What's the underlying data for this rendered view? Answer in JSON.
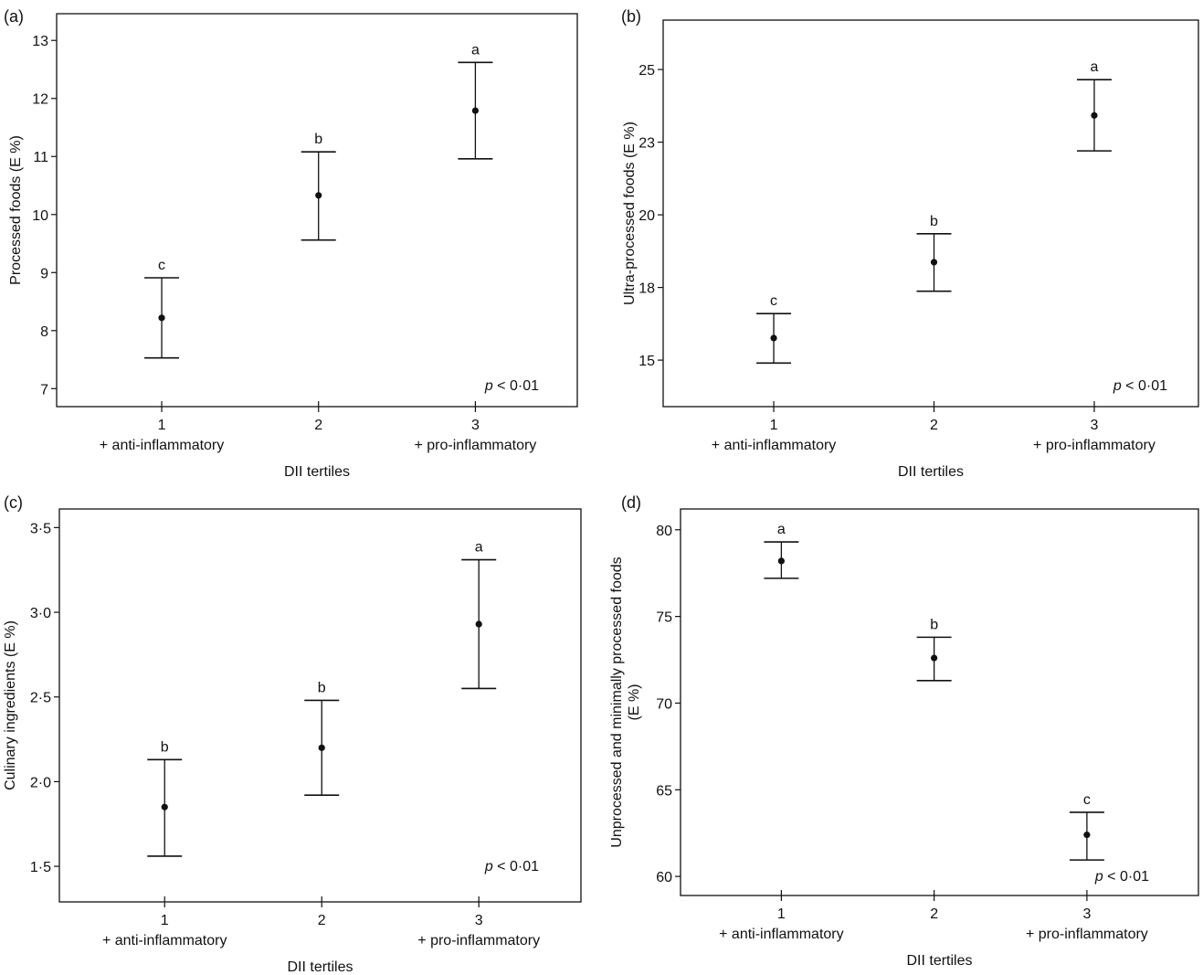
{
  "chart_data": [
    {
      "type": "scatter",
      "panel_label": "(a)",
      "ylabel": [
        "Processed foods (E %)"
      ],
      "xlabel": "DII tertiles",
      "x": [
        1,
        2,
        3
      ],
      "x_tick_labels": [
        "1",
        "2",
        "3"
      ],
      "x_tick_sublabels": [
        "+ anti-inflammatory",
        "",
        "+ pro-inflammatory"
      ],
      "xlim": [
        0.33,
        3.65
      ],
      "ylim": [
        6.69,
        13.46
      ],
      "y_ticks": [
        7,
        8,
        9,
        10,
        11,
        12,
        13
      ],
      "y_tick_labels": [
        "7",
        "8",
        "9",
        "10",
        "11",
        "12",
        "13"
      ],
      "means": [
        8.22,
        10.33,
        11.79
      ],
      "upper": [
        8.91,
        11.08,
        12.62
      ],
      "lower": [
        7.53,
        9.56,
        10.96
      ],
      "group_letters": [
        "c",
        "b",
        "a"
      ],
      "p_value": {
        "p": "p",
        "rest": " < 0·01"
      },
      "grid": false
    },
    {
      "type": "scatter",
      "panel_label": "(b)",
      "ylabel": [
        "Ultra-processed foods (E %)"
      ],
      "xlabel": "DII tertiles",
      "x": [
        1,
        2,
        3
      ],
      "x_tick_labels": [
        "1",
        "2",
        "3"
      ],
      "x_tick_sublabels": [
        "+ anti-inflammatory",
        "",
        "+ pro-inflammatory"
      ],
      "xlim": [
        0.31,
        3.65
      ],
      "ylim": [
        13.4,
        26.7
      ],
      "y_ticks": [
        15,
        17.5,
        20,
        22.5,
        25
      ],
      "y_tick_labels": [
        "15",
        "18",
        "20",
        "23",
        "25"
      ],
      "means": [
        15.76,
        18.37,
        23.42
      ],
      "upper": [
        16.6,
        19.35,
        24.65
      ],
      "lower": [
        14.9,
        17.37,
        22.2
      ],
      "group_letters": [
        "c",
        "b",
        "a"
      ],
      "p_value": {
        "p": "p",
        "rest": " < 0·01"
      },
      "grid": false
    },
    {
      "type": "scatter",
      "panel_label": "(c)",
      "ylabel": [
        "Culinary ingredients (E %)"
      ],
      "xlabel": "DII tertiles",
      "x": [
        1,
        2,
        3
      ],
      "x_tick_labels": [
        "1",
        "2",
        "3"
      ],
      "x_tick_sublabels": [
        "+ anti-inflammatory",
        "",
        "+ pro-inflammatory"
      ],
      "xlim": [
        0.33,
        3.65
      ],
      "ylim": [
        1.29,
        3.61
      ],
      "y_ticks": [
        1.5,
        2.0,
        2.5,
        3.0,
        3.5
      ],
      "y_tick_labels": [
        "1·5",
        "2·0",
        "2·5",
        "3·0",
        "3·5"
      ],
      "means": [
        1.85,
        2.2,
        2.93
      ],
      "upper": [
        2.13,
        2.48,
        3.31
      ],
      "lower": [
        1.56,
        1.92,
        2.55
      ],
      "group_letters": [
        "b",
        "b",
        "a"
      ],
      "p_value": {
        "p": "p",
        "rest": " < 0·01"
      },
      "grid": false
    },
    {
      "type": "scatter",
      "panel_label": "(d)",
      "ylabel": [
        "Unprocessed and minimally processed foods",
        "(E %)"
      ],
      "xlabel": "DII tertiles",
      "x": [
        1,
        2,
        3
      ],
      "x_tick_labels": [
        "1",
        "2",
        "3"
      ],
      "x_tick_sublabels": [
        "+ anti-inflammatory",
        "",
        "+ pro-inflammatory"
      ],
      "xlim": [
        0.34,
        3.73
      ],
      "ylim": [
        58.9,
        81.2
      ],
      "y_ticks": [
        60,
        65,
        70,
        75,
        80
      ],
      "y_tick_labels": [
        "60",
        "65",
        "70",
        "75",
        "80"
      ],
      "means": [
        78.2,
        72.6,
        62.4
      ],
      "upper": [
        79.3,
        73.8,
        63.7
      ],
      "lower": [
        77.2,
        71.3,
        60.95
      ],
      "group_letters": [
        "a",
        "b",
        "c"
      ],
      "p_value": {
        "p": "p",
        "rest": " < 0·01"
      },
      "grid": false
    }
  ]
}
